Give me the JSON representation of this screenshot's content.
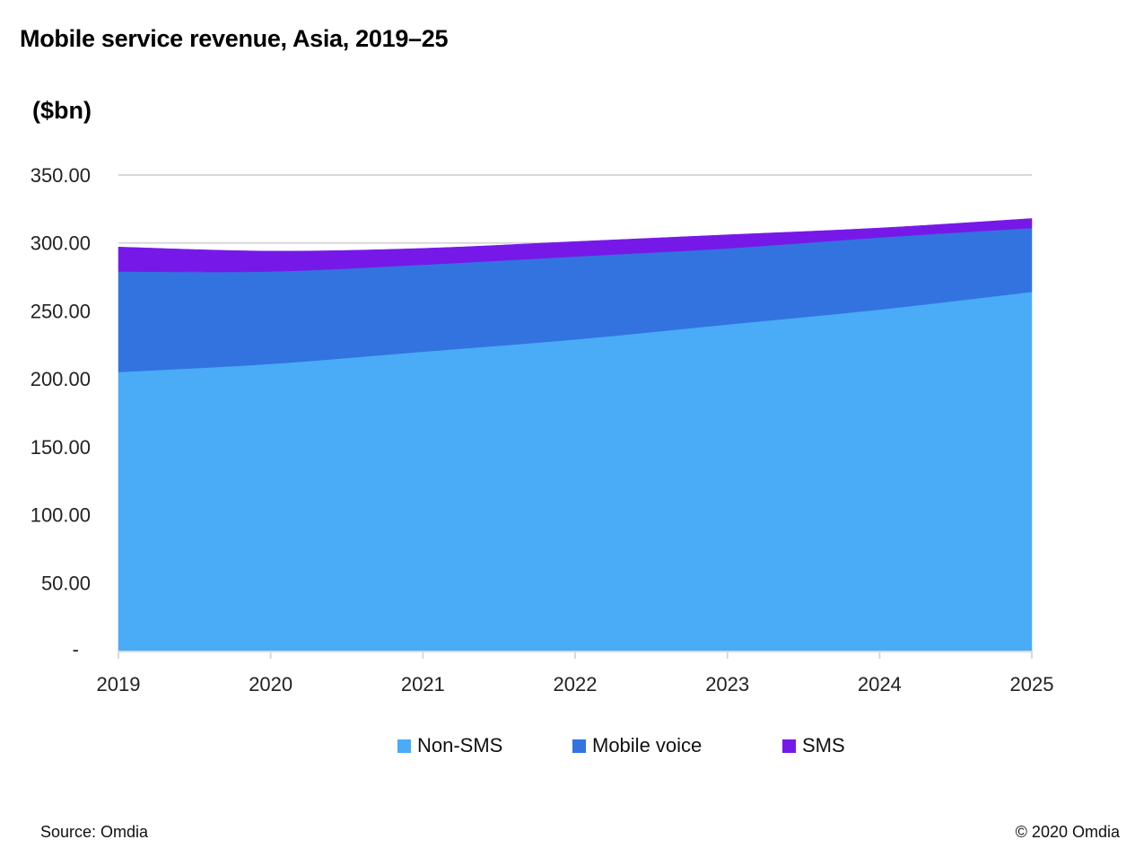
{
  "header": {
    "title": "Mobile service revenue, Asia, 2019–25",
    "unit_label": "($bn)"
  },
  "footer": {
    "source": "Source: Omdia",
    "copyright": "© 2020 Omdia"
  },
  "colors": {
    "non_sms": "#4AABF6",
    "mobile_voice": "#3273E0",
    "sms": "#7619E8",
    "grid": "#D9D9D9"
  },
  "chart_data": {
    "type": "area",
    "stacked": true,
    "title": "Mobile service revenue, Asia, 2019–25",
    "xlabel": "",
    "ylabel": "($bn)",
    "x": [
      "2019",
      "2020",
      "2021",
      "2022",
      "2023",
      "2024",
      "2025"
    ],
    "ylim": [
      0,
      350
    ],
    "yticks": [
      0,
      50,
      100,
      150,
      200,
      250,
      300,
      350
    ],
    "ytick_labels": [
      "-",
      "50.00",
      "100.00",
      "150.00",
      "200.00",
      "250.00",
      "300.00",
      "350.00"
    ],
    "grid": true,
    "legend_position": "bottom",
    "series": [
      {
        "name": "Non-SMS",
        "color": "#4AABF6",
        "values": [
          205,
          211,
          220,
          229,
          240,
          251,
          264
        ]
      },
      {
        "name": "Mobile voice",
        "color": "#3273E0",
        "values": [
          74,
          68,
          64,
          61,
          56,
          53,
          47
        ]
      },
      {
        "name": "SMS",
        "color": "#7619E8",
        "values": [
          18,
          15,
          12,
          11,
          10,
          7,
          7
        ]
      }
    ]
  }
}
